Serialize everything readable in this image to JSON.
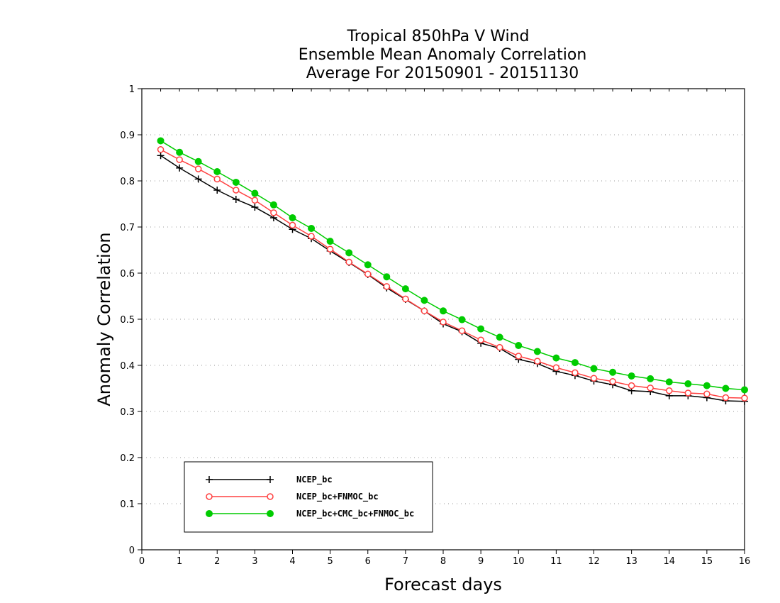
{
  "chart_data": {
    "type": "line",
    "title_lines": [
      "Tropical 850hPa V Wind",
      "Ensemble Mean Anomaly Correlation",
      "Average For 20150901 - 20151130"
    ],
    "xlabel": "Forecast days",
    "ylabel": "Anomaly Correlation",
    "xlim": [
      0,
      16
    ],
    "ylim": [
      0,
      1
    ],
    "x_ticks": [
      "0",
      "1",
      "2",
      "3",
      "4",
      "5",
      "6",
      "7",
      "8",
      "9",
      "10",
      "11",
      "12",
      "13",
      "14",
      "15",
      "16"
    ],
    "y_ticks": [
      "0",
      "0.1",
      "0.2",
      "0.3",
      "0.4",
      "0.5",
      "0.6",
      "0.7",
      "0.8",
      "0.9",
      "1"
    ],
    "grid": "horizontal dotted",
    "legend_position": "bottom-left",
    "x": [
      0.5,
      1,
      1.5,
      2,
      2.5,
      3,
      3.5,
      4,
      4.5,
      5,
      5.5,
      6,
      6.5,
      7,
      7.5,
      8,
      8.5,
      9,
      9.5,
      10,
      10.5,
      11,
      11.5,
      12,
      12.5,
      13,
      13.5,
      14,
      14.5,
      15,
      15.5,
      16
    ],
    "series": [
      {
        "name": "NCEP_bc",
        "color": "#000000",
        "marker": "plus",
        "values": [
          0.855,
          0.828,
          0.804,
          0.78,
          0.76,
          0.743,
          0.72,
          0.695,
          0.675,
          0.648,
          0.623,
          0.597,
          0.568,
          0.543,
          0.518,
          0.49,
          0.473,
          0.448,
          0.437,
          0.413,
          0.404,
          0.387,
          0.378,
          0.366,
          0.358,
          0.345,
          0.343,
          0.334,
          0.334,
          0.33,
          0.323,
          0.322
        ]
      },
      {
        "name": "NCEP_bc+FNMOC_bc",
        "color": "#ff4040",
        "marker": "open-circle",
        "values": [
          0.868,
          0.846,
          0.826,
          0.804,
          0.78,
          0.758,
          0.731,
          0.704,
          0.68,
          0.652,
          0.624,
          0.598,
          0.571,
          0.544,
          0.518,
          0.494,
          0.475,
          0.455,
          0.439,
          0.42,
          0.409,
          0.395,
          0.384,
          0.372,
          0.365,
          0.356,
          0.351,
          0.345,
          0.34,
          0.338,
          0.33,
          0.329
        ]
      },
      {
        "name": "NCEP_bc+CMC_bc+FNMOC_bc",
        "color": "#00cc00",
        "marker": "filled-circle",
        "values": [
          0.887,
          0.862,
          0.842,
          0.82,
          0.797,
          0.773,
          0.748,
          0.72,
          0.697,
          0.669,
          0.644,
          0.618,
          0.592,
          0.566,
          0.541,
          0.518,
          0.499,
          0.479,
          0.461,
          0.443,
          0.43,
          0.416,
          0.406,
          0.393,
          0.385,
          0.377,
          0.371,
          0.364,
          0.36,
          0.356,
          0.35,
          0.347
        ]
      }
    ]
  }
}
